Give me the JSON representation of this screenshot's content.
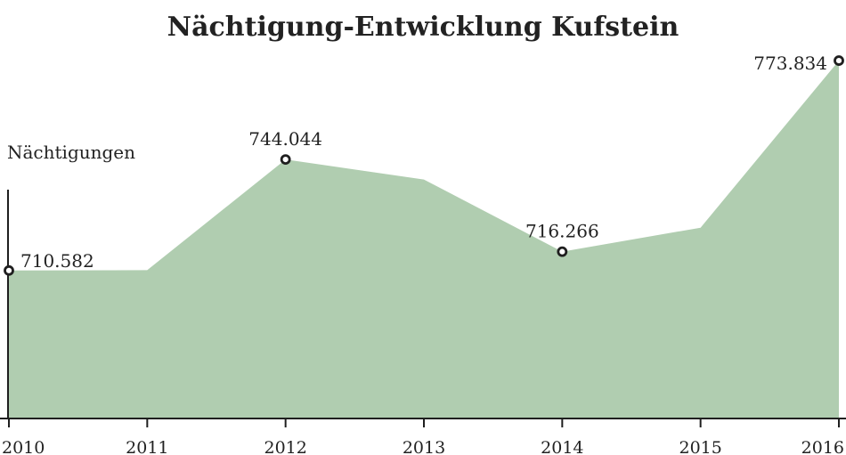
{
  "chart_data": {
    "type": "area",
    "title": "Nächtigung-Entwicklung Kufstein",
    "ylabel": "Nächtigungen",
    "xlabel": "",
    "categories": [
      "2010",
      "2011",
      "2012",
      "2013",
      "2014",
      "2015",
      "2016"
    ],
    "series": [
      {
        "values": [
          710582,
          710700,
          744044,
          738000,
          716266,
          723500,
          773834
        ]
      }
    ],
    "data_labels": [
      {
        "index": 0,
        "text": "710.582"
      },
      {
        "index": 2,
        "text": "744.044"
      },
      {
        "index": 4,
        "text": "716.266"
      },
      {
        "index": 6,
        "text": "773.834"
      }
    ],
    "ylim": [
      666000,
      776000
    ],
    "grid": false,
    "colors": {
      "area": "#b0cdb0",
      "axis": "#1f1f1f",
      "marker": "#1f1f1f",
      "text": "#222222"
    }
  }
}
